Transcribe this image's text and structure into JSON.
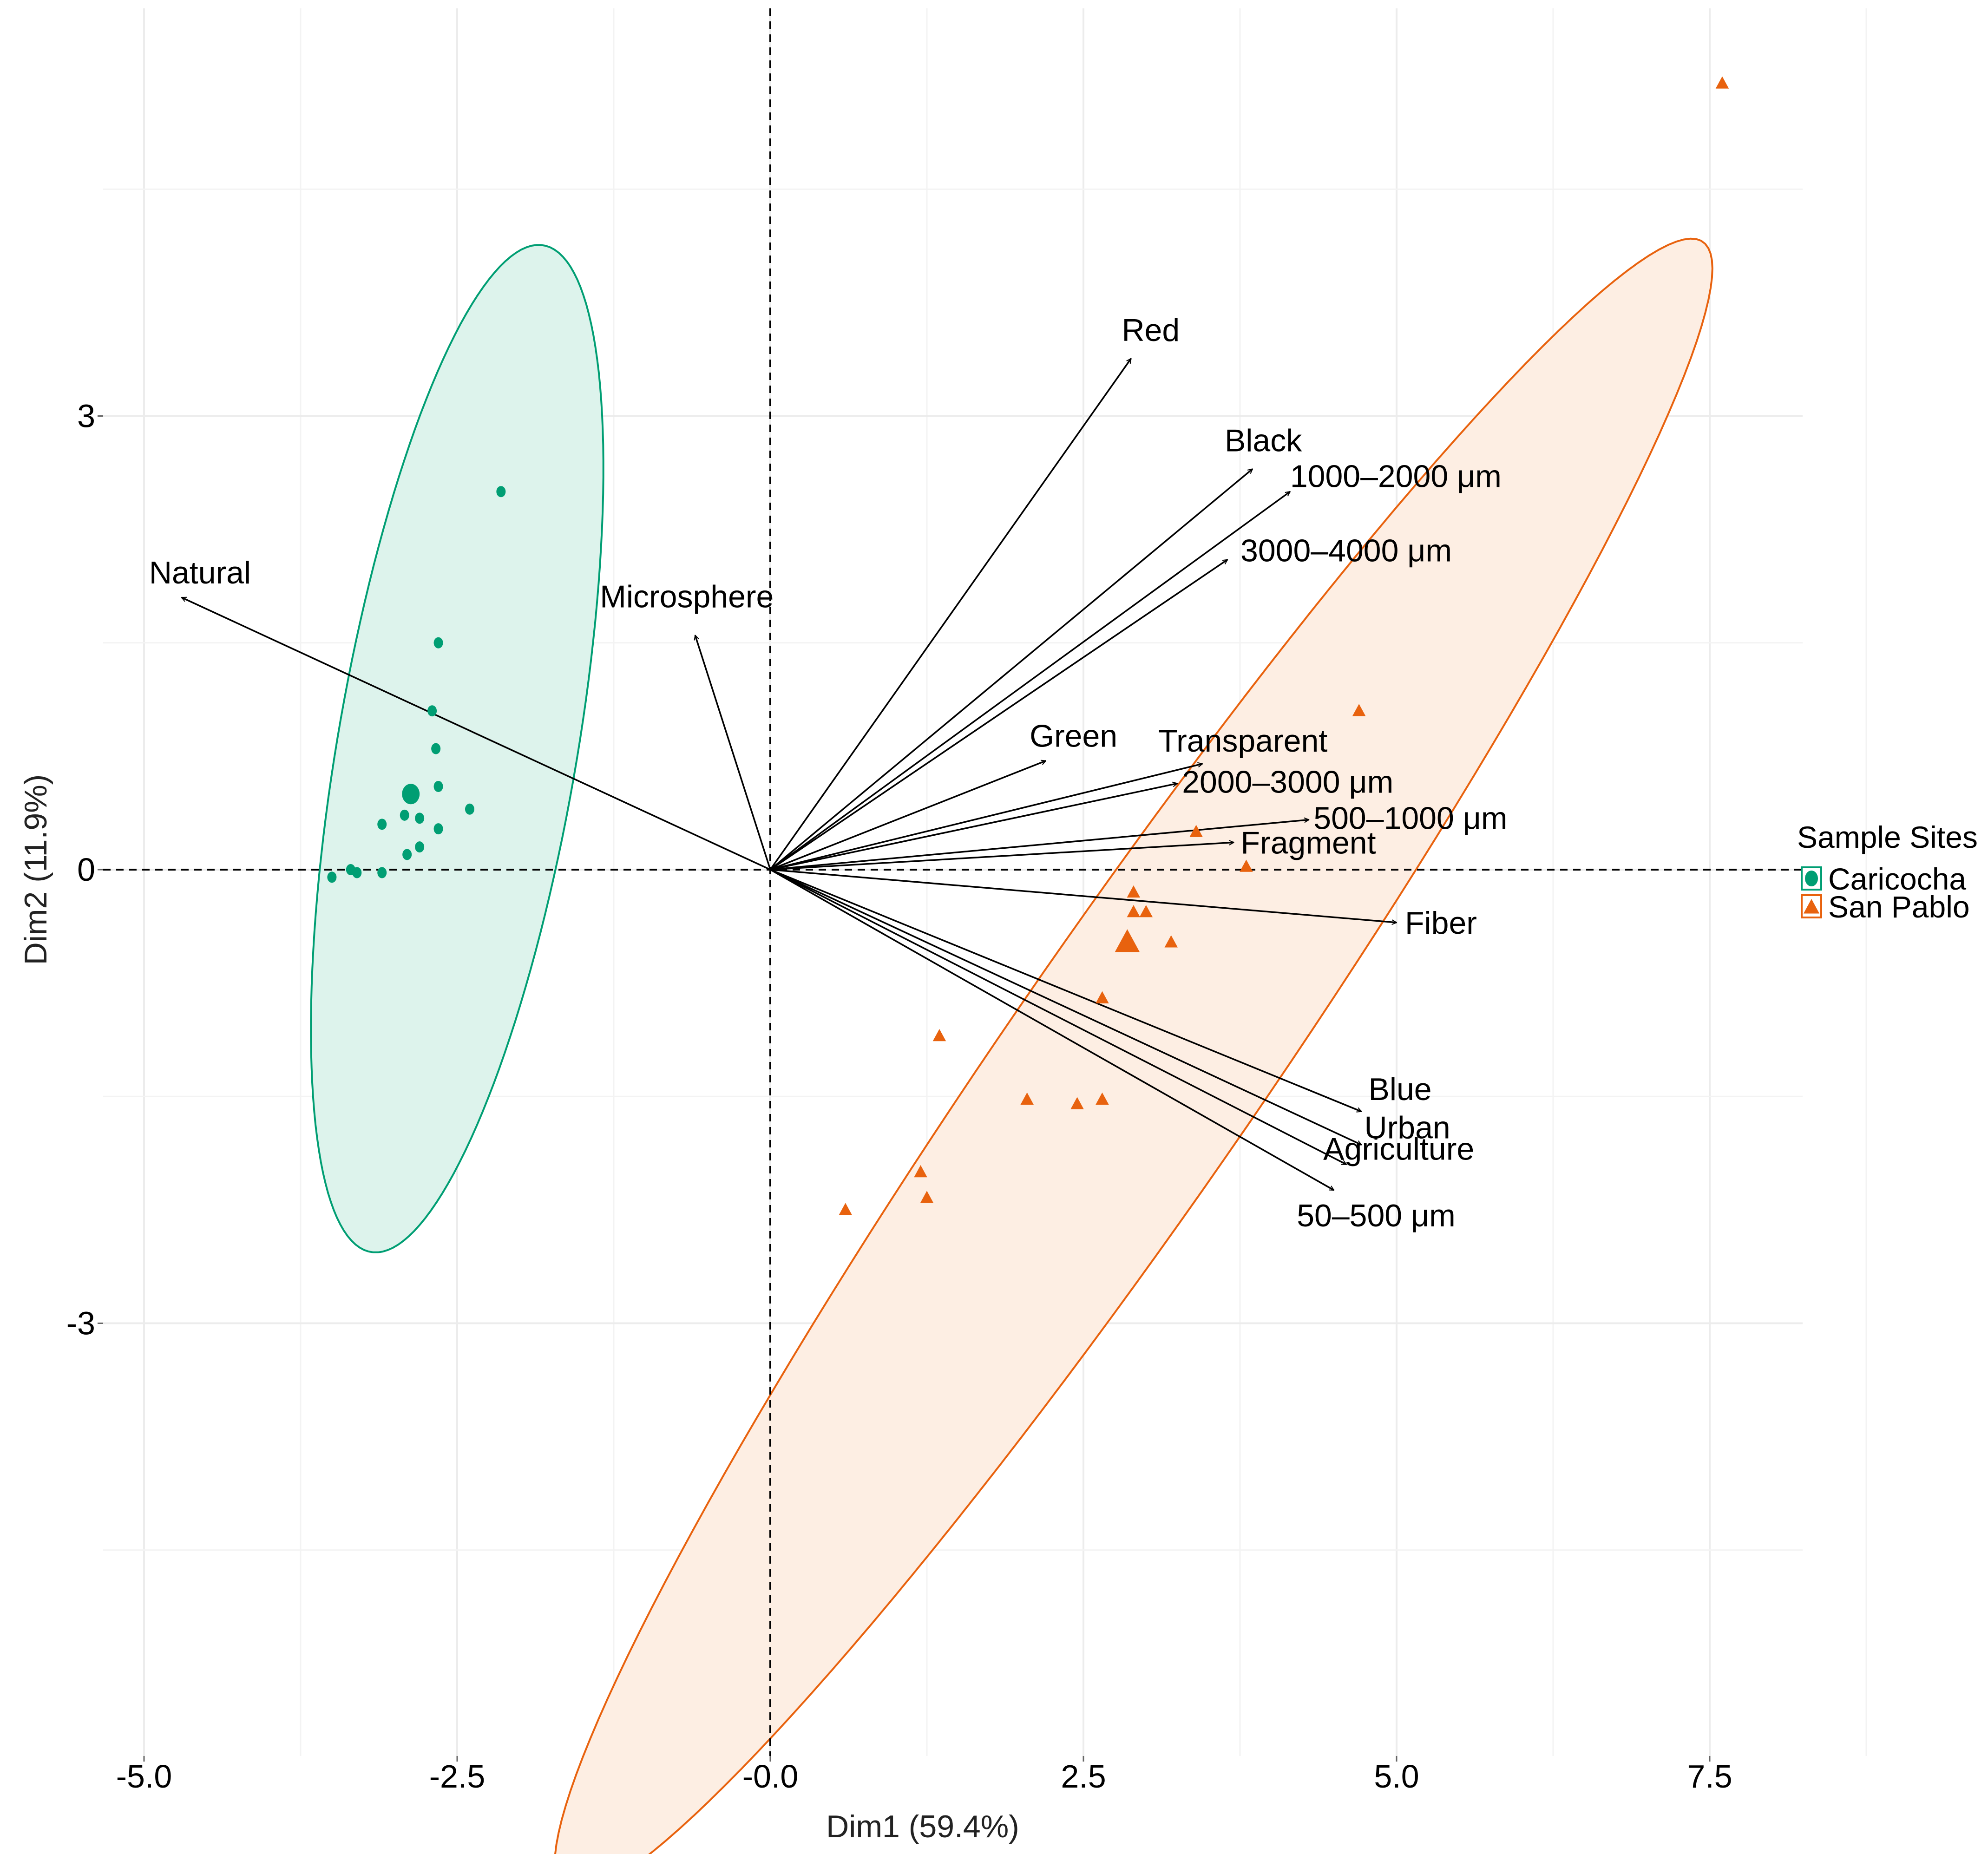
{
  "chart_data": {
    "type": "scatter",
    "subtype": "PCA biplot",
    "xlabel": "Dim1 (59.4%)",
    "ylabel": "Dim2 (11.9%)",
    "xlim": [
      -5.0,
      8.3
    ],
    "ylim": [
      -5.8,
      5.7
    ],
    "x_ticks": [
      {
        "value": -5.0,
        "label": "-5.0"
      },
      {
        "value": -2.5,
        "label": "-2.5"
      },
      {
        "value": 0.0,
        "label": "-0.0"
      },
      {
        "value": 2.5,
        "label": "2.5"
      },
      {
        "value": 5.0,
        "label": "5.0"
      },
      {
        "value": 7.5,
        "label": "7.5"
      }
    ],
    "y_ticks": [
      {
        "value": 3,
        "label": "3"
      },
      {
        "value": 0,
        "label": "0"
      },
      {
        "value": -3,
        "label": "-3"
      }
    ],
    "grid": true,
    "reference_lines": {
      "x": 0,
      "y": 0,
      "style": "dashed"
    },
    "legend": {
      "title": "Sample Sites",
      "placement": "right",
      "entries": [
        {
          "label": "Caricocha",
          "color": "#009E73",
          "shape": "circle"
        },
        {
          "label": "San Pablo",
          "color": "#E8620E",
          "shape": "triangle"
        }
      ]
    },
    "series": [
      {
        "name": "Caricocha",
        "color": "#009E73",
        "fill": "#DDF3EC",
        "shape": "circle",
        "centroid": [
          -2.87,
          0.5
        ],
        "ellipse": {
          "center": [
            -2.5,
            0.8
          ],
          "semi_major": 3.4,
          "semi_minor": 0.95,
          "angle_deg": 78
        },
        "points": [
          [
            -2.15,
            2.5
          ],
          [
            -2.65,
            1.5
          ],
          [
            -2.7,
            1.05
          ],
          [
            -2.67,
            0.8
          ],
          [
            -2.65,
            0.55
          ],
          [
            -2.4,
            0.4
          ],
          [
            -2.92,
            0.36
          ],
          [
            -2.8,
            0.34
          ],
          [
            -3.1,
            0.3
          ],
          [
            -2.65,
            0.27
          ],
          [
            -2.8,
            0.15
          ],
          [
            -2.9,
            0.1
          ],
          [
            -3.1,
            -0.02
          ],
          [
            -3.35,
            0.0
          ],
          [
            -3.3,
            -0.02
          ],
          [
            -3.5,
            -0.05
          ]
        ]
      },
      {
        "name": "San Pablo",
        "color": "#E8620E",
        "fill": "#FDEEE3",
        "shape": "triangle",
        "centroid": [
          2.85,
          -0.48
        ],
        "ellipse": {
          "center": [
            2.9,
            -1.3
          ],
          "semi_major": 7.1,
          "semi_minor": 0.95,
          "angle_deg": 50
        },
        "points": [
          [
            7.6,
            5.2
          ],
          [
            4.7,
            1.05
          ],
          [
            3.4,
            0.25
          ],
          [
            3.8,
            0.02
          ],
          [
            2.9,
            -0.15
          ],
          [
            2.9,
            -0.28
          ],
          [
            3.0,
            -0.28
          ],
          [
            3.2,
            -0.48
          ],
          [
            2.65,
            -0.85
          ],
          [
            1.35,
            -1.1
          ],
          [
            2.05,
            -1.52
          ],
          [
            2.45,
            -1.55
          ],
          [
            2.65,
            -1.52
          ],
          [
            1.2,
            -2.0
          ],
          [
            1.25,
            -2.17
          ],
          [
            0.6,
            -2.25
          ]
        ]
      }
    ],
    "variables": [
      {
        "label": "Red",
        "x": 2.88,
        "y": 3.38
      },
      {
        "label": "Black",
        "x": 3.85,
        "y": 2.65
      },
      {
        "label": "1000–2000 μm",
        "x": 4.15,
        "y": 2.5
      },
      {
        "label": "3000–4000 μm",
        "x": 3.65,
        "y": 2.05
      },
      {
        "label": "Natural",
        "x": -4.7,
        "y": 1.8
      },
      {
        "label": "Microsphere",
        "x": -0.6,
        "y": 1.55
      },
      {
        "label": "Green",
        "x": 2.2,
        "y": 0.72
      },
      {
        "label": "Transparent",
        "x": 3.45,
        "y": 0.7
      },
      {
        "label": "2000–3000 μm",
        "x": 3.25,
        "y": 0.57
      },
      {
        "label": "500–1000 μm",
        "x": 4.3,
        "y": 0.33
      },
      {
        "label": "Fragment",
        "x": 3.7,
        "y": 0.18
      },
      {
        "label": "Fiber",
        "x": 5.0,
        "y": -0.35
      },
      {
        "label": "Blue",
        "x": 4.72,
        "y": -1.6
      },
      {
        "label": "Urban",
        "x": 4.72,
        "y": -1.82
      },
      {
        "label": "Agriculture",
        "x": 4.6,
        "y": -1.95
      },
      {
        "label": "50–500 μm",
        "x": 4.5,
        "y": -2.12
      }
    ]
  }
}
